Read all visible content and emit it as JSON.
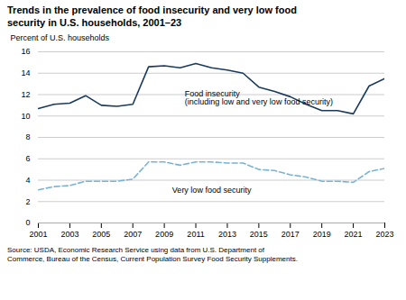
{
  "chart_data": {
    "type": "line",
    "title": "Trends in the prevalence of food insecurity and very low food\nsecurity in U.S. households, 2001–23",
    "ylabel": "Percent of U.S. households",
    "source": "Source: USDA, Economic Research Service using data from U.S. Department of\nCommerce, Bureau of the Census, Current Population Survey Food Security Supplements.",
    "x": [
      2001,
      2002,
      2003,
      2004,
      2005,
      2006,
      2007,
      2008,
      2009,
      2010,
      2011,
      2012,
      2013,
      2014,
      2015,
      2016,
      2017,
      2018,
      2019,
      2020,
      2021,
      2022,
      2023
    ],
    "series": [
      {
        "color": "#1a3a5c",
        "line_style": "solid",
        "values": [
          10.7,
          11.1,
          11.2,
          11.9,
          11.0,
          10.9,
          11.1,
          14.6,
          14.7,
          14.5,
          14.9,
          14.5,
          14.3,
          14.0,
          12.7,
          12.3,
          11.8,
          11.1,
          10.5,
          10.5,
          10.2,
          12.8,
          13.5
        ]
      },
      {
        "color": "#7ab3d4",
        "line_style": "dashed",
        "values": [
          3.1,
          3.4,
          3.5,
          3.9,
          3.9,
          3.9,
          4.1,
          5.7,
          5.7,
          5.4,
          5.7,
          5.7,
          5.6,
          5.6,
          5.0,
          4.9,
          4.5,
          4.3,
          3.9,
          3.9,
          3.8,
          4.8,
          5.1
        ]
      }
    ],
    "annotations": [
      {
        "text": "Food insecurity\n(including low and very low food security)",
        "x": 2010.3,
        "y": 12.4
      },
      {
        "text": "Very low food security",
        "x": 2009.5,
        "y": 3.4
      }
    ],
    "xlim": [
      2001,
      2023
    ],
    "xticks": [
      2001,
      2003,
      2005,
      2007,
      2009,
      2011,
      2013,
      2015,
      2017,
      2019,
      2021,
      2023
    ],
    "ylim": [
      0,
      16
    ],
    "yticks": [
      0,
      2,
      4,
      6,
      8,
      10,
      12,
      14,
      16
    ],
    "grid": true
  }
}
